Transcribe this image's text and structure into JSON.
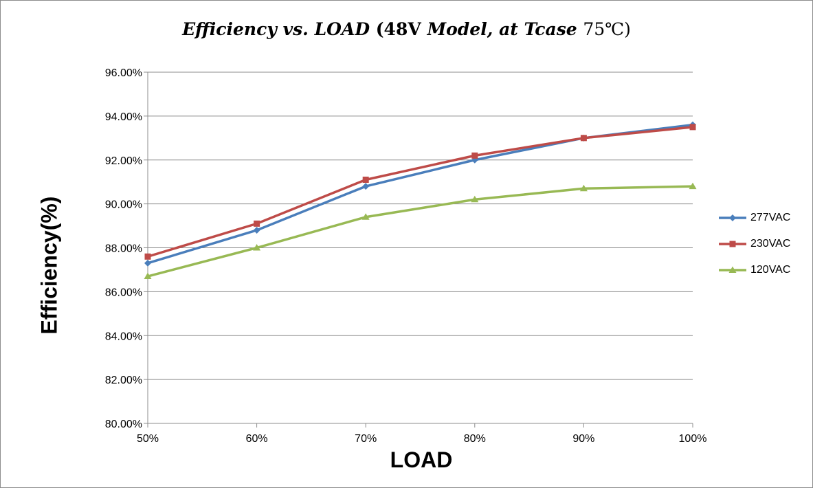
{
  "chart_data": {
    "type": "line",
    "title_parts": [
      {
        "text": "Efficiency vs. LOAD ",
        "italic": true
      },
      {
        "text": "(48V ",
        "italic": false
      },
      {
        "text": "Model, at Tcase ",
        "italic": true
      },
      {
        "text": "75℃)",
        "italic": false
      }
    ],
    "xlabel": "LOAD",
    "ylabel": "Efficiency(%)",
    "categories": [
      "50%",
      "60%",
      "70%",
      "80%",
      "90%",
      "100%"
    ],
    "ylim": [
      80,
      96
    ],
    "yticks": [
      80,
      82,
      84,
      86,
      88,
      90,
      92,
      94,
      96
    ],
    "ytick_labels": [
      "80.00%",
      "82.00%",
      "84.00%",
      "86.00%",
      "88.00%",
      "90.00%",
      "92.00%",
      "94.00%",
      "96.00%"
    ],
    "grid": true,
    "legend_position": "right",
    "series": [
      {
        "name": "277VAC",
        "color": "#4a7ebb",
        "marker": "diamond",
        "values": [
          87.3,
          88.8,
          90.8,
          92.0,
          93.0,
          93.6
        ]
      },
      {
        "name": "230VAC",
        "color": "#be4b48",
        "marker": "square",
        "values": [
          87.6,
          89.1,
          91.1,
          92.2,
          93.0,
          93.5
        ]
      },
      {
        "name": "120VAC",
        "color": "#98b954",
        "marker": "triangle",
        "values": [
          86.7,
          88.0,
          89.4,
          90.2,
          90.7,
          90.8
        ]
      }
    ]
  }
}
